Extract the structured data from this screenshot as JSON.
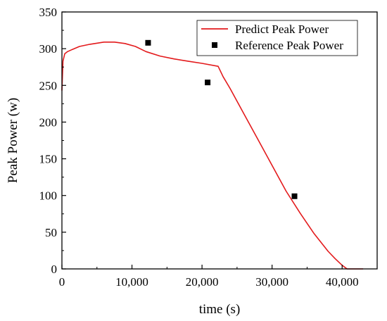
{
  "chart_data": {
    "type": "line",
    "title": "",
    "xlabel": "time (s)",
    "ylabel": "Peak Power (w)",
    "xlim": [
      0,
      45000
    ],
    "ylim": [
      0,
      350
    ],
    "x_ticks": [
      0,
      10000,
      20000,
      30000,
      40000
    ],
    "x_tick_labels": [
      "0",
      "10,000",
      "20,000",
      "30,000",
      "40,000"
    ],
    "y_ticks": [
      0,
      50,
      100,
      150,
      200,
      250,
      300,
      350
    ],
    "y_tick_labels": [
      "0",
      "50",
      "100",
      "150",
      "200",
      "250",
      "300",
      "350"
    ],
    "grid": false,
    "legend_position": "top-right",
    "series": [
      {
        "name": "Predict Peak Power",
        "kind": "line",
        "color": "#e31a1c",
        "x": [
          0,
          150,
          400,
          800,
          1500,
          2500,
          4000,
          6000,
          7500,
          9000,
          10500,
          12000,
          14000,
          16000,
          18000,
          20000,
          22300,
          23000,
          24000,
          26000,
          28000,
          30000,
          32000,
          34000,
          36000,
          38000,
          39000,
          40000,
          40700,
          41000,
          42000,
          43000
        ],
        "y": [
          243,
          283,
          293,
          296,
          299,
          303,
          306,
          309,
          309,
          307,
          303,
          296,
          290,
          286,
          283,
          280,
          276,
          262,
          246,
          211,
          176,
          141,
          106,
          76,
          48,
          24,
          14,
          5,
          0,
          0,
          0,
          0
        ]
      },
      {
        "name": "Reference Peak Power",
        "kind": "scatter",
        "color": "#000000",
        "x": [
          12300,
          20800,
          33200
        ],
        "y": [
          308,
          254,
          99
        ]
      }
    ]
  }
}
